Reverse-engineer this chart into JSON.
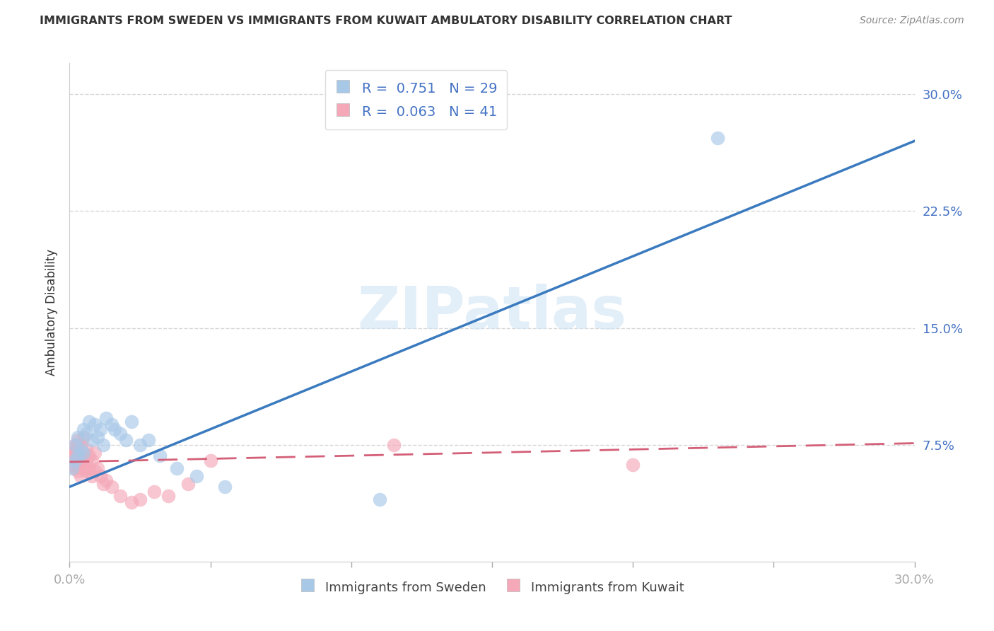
{
  "title": "IMMIGRANTS FROM SWEDEN VS IMMIGRANTS FROM KUWAIT AMBULATORY DISABILITY CORRELATION CHART",
  "source": "Source: ZipAtlas.com",
  "ylabel": "Ambulatory Disability",
  "xlim": [
    0.0,
    0.3
  ],
  "ylim": [
    0.0,
    0.32
  ],
  "xticks": [
    0.0,
    0.05,
    0.1,
    0.15,
    0.2,
    0.25,
    0.3
  ],
  "yticks": [
    0.075,
    0.15,
    0.225,
    0.3
  ],
  "ytick_labels": [
    "7.5%",
    "15.0%",
    "22.5%",
    "30.0%"
  ],
  "xtick_labels_show": [
    "0.0%",
    "30.0%"
  ],
  "legend_r_sweden": "0.751",
  "legend_n_sweden": "29",
  "legend_r_kuwait": "0.063",
  "legend_n_kuwait": "41",
  "sweden_color": "#a8c8e8",
  "kuwait_color": "#f4a8b8",
  "sweden_line_color": "#3a7abf",
  "kuwait_line_color": "#d45f78",
  "watermark": "ZIPatlas",
  "background_color": "#ffffff",
  "grid_color": "#cccccc",
  "sweden_points_x": [
    0.001,
    0.002,
    0.002,
    0.003,
    0.003,
    0.004,
    0.005,
    0.005,
    0.006,
    0.007,
    0.008,
    0.009,
    0.01,
    0.011,
    0.012,
    0.013,
    0.015,
    0.016,
    0.018,
    0.02,
    0.022,
    0.025,
    0.028,
    0.032,
    0.038,
    0.045,
    0.055,
    0.11,
    0.23
  ],
  "sweden_points_y": [
    0.06,
    0.065,
    0.075,
    0.068,
    0.08,
    0.072,
    0.085,
    0.07,
    0.082,
    0.09,
    0.078,
    0.088,
    0.08,
    0.085,
    0.075,
    0.092,
    0.088,
    0.085,
    0.082,
    0.078,
    0.09,
    0.075,
    0.078,
    0.068,
    0.06,
    0.055,
    0.048,
    0.04,
    0.272
  ],
  "kuwait_points_x": [
    0.001,
    0.001,
    0.001,
    0.002,
    0.002,
    0.002,
    0.002,
    0.003,
    0.003,
    0.003,
    0.003,
    0.004,
    0.004,
    0.004,
    0.005,
    0.005,
    0.005,
    0.005,
    0.006,
    0.006,
    0.006,
    0.007,
    0.007,
    0.008,
    0.008,
    0.009,
    0.009,
    0.01,
    0.011,
    0.012,
    0.013,
    0.015,
    0.018,
    0.022,
    0.025,
    0.03,
    0.035,
    0.042,
    0.05,
    0.115,
    0.2
  ],
  "kuwait_points_y": [
    0.062,
    0.068,
    0.072,
    0.06,
    0.065,
    0.07,
    0.075,
    0.058,
    0.065,
    0.072,
    0.078,
    0.055,
    0.068,
    0.075,
    0.06,
    0.065,
    0.07,
    0.08,
    0.058,
    0.065,
    0.072,
    0.06,
    0.068,
    0.055,
    0.065,
    0.058,
    0.07,
    0.06,
    0.055,
    0.05,
    0.052,
    0.048,
    0.042,
    0.038,
    0.04,
    0.045,
    0.042,
    0.05,
    0.065,
    0.075,
    0.062
  ],
  "sweden_line_x": [
    0.0,
    0.3
  ],
  "sweden_line_y": [
    0.048,
    0.27
  ],
  "kuwait_line_x": [
    0.0,
    0.3
  ],
  "kuwait_line_y": [
    0.064,
    0.076
  ]
}
